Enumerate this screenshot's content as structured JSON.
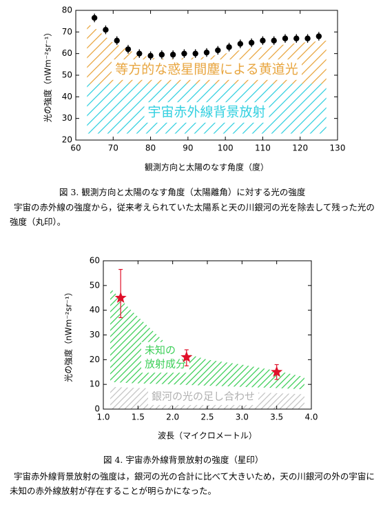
{
  "chart_data": [
    {
      "type": "scatter",
      "marker": "circle",
      "color": "#000000",
      "x_label": "観測方向と太陽のなす角度（度）",
      "y_label": "光の強度（nWm⁻²sr⁻¹）",
      "caption": "図 3.  観測方向と太陽のなす角度（太陽離角）に対する光の強度",
      "description": "宇宙の赤外線の強度から，従来考えられていた太陽系と天の川銀河の光を除去して残った光の強度（丸印）。",
      "x": [
        65,
        68,
        71,
        74,
        77,
        80,
        83,
        86,
        89,
        92,
        95,
        98,
        101,
        104,
        107,
        110,
        113,
        116,
        119,
        122,
        125
      ],
      "values": [
        76.5,
        71,
        66,
        62,
        60,
        59,
        59.5,
        59.5,
        60,
        60,
        60.5,
        61.5,
        63,
        64.5,
        65,
        66,
        66,
        67,
        67,
        67,
        68
      ],
      "errors": [
        2,
        2,
        2,
        2,
        2,
        2,
        2,
        2,
        2,
        2,
        2,
        2,
        2,
        2,
        2,
        2,
        2,
        2,
        2,
        2,
        2
      ],
      "regions": [
        {
          "name": [
            "等方的な惑星間塵による黄道光"
          ],
          "color": "#e8a640",
          "x": [
            63,
            65,
            70,
            75,
            80,
            85,
            90,
            95,
            100,
            105,
            110,
            115,
            120,
            127
          ],
          "upper": [
            74,
            72,
            65,
            61,
            58,
            57.5,
            58,
            58.5,
            60,
            62,
            63,
            64,
            65,
            66
          ],
          "lower": [
            46,
            46,
            46,
            46,
            46,
            46,
            46,
            46,
            46,
            46,
            46,
            46,
            46,
            46
          ]
        },
        {
          "name": [
            "宇宙赤外線背景放射"
          ],
          "color": "#33d0e0",
          "x": [
            63,
            127
          ],
          "upper": [
            46,
            46
          ],
          "lower": [
            23,
            23
          ]
        }
      ],
      "xlim": [
        60,
        130
      ],
      "xticks": [
        60,
        70,
        80,
        90,
        100,
        110,
        120,
        130
      ],
      "ylim": [
        20,
        80
      ],
      "yticks": [
        20,
        30,
        40,
        50,
        60,
        70,
        80
      ]
    },
    {
      "type": "scatter",
      "marker": "star",
      "color": "#e0102a",
      "x_label": "波長（マイクロメートル）",
      "y_label": "光の強度（nWm⁻²sr⁻¹）",
      "caption": "図 4.  宇宙赤外線背景放射の強度（星印）",
      "description": "宇宙赤外線背景放射の強度は，銀河の光の合計に比べて大きいため，天の川銀河の外の宇宙に未知の赤外線放射が存在することが明らかになった。",
      "x": [
        1.25,
        2.2,
        3.5
      ],
      "values": [
        45,
        21,
        15
      ],
      "lower": [
        37,
        17.5,
        12
      ],
      "upper": [
        56.5,
        24,
        18
      ],
      "regions": [
        {
          "name": [
            "未知の",
            "放射成分"
          ],
          "color": "#3ccf58",
          "x": [
            1.1,
            1.4,
            2.0,
            2.5,
            3.0,
            3.5,
            3.9
          ],
          "upper": [
            49,
            40,
            24,
            20,
            18,
            15.5,
            13
          ],
          "lower": [
            11,
            10.5,
            10,
            9.5,
            9,
            8.5,
            8
          ]
        },
        {
          "name": [
            "銀河の光の足し合わせ"
          ],
          "color": "#c4c4c4",
          "x": [
            1.1,
            3.9
          ],
          "upper": [
            9,
            6
          ],
          "lower": [
            0,
            0
          ]
        }
      ],
      "xlim": [
        1.0,
        4.0
      ],
      "xticks": [
        {
          "value": 1.0,
          "label": "1.0"
        },
        {
          "value": 1.5,
          "label": "1.5"
        },
        {
          "value": 2.0,
          "label": "2.0"
        },
        {
          "value": 2.5,
          "label": "2.5"
        },
        {
          "value": 3.0,
          "label": "3.0"
        },
        {
          "value": 3.5,
          "label": "3.5"
        },
        {
          "value": 4.0,
          "label": "4.0"
        }
      ],
      "ylim": [
        0,
        60
      ],
      "yticks": [
        0,
        10,
        20,
        30,
        40,
        50,
        60
      ]
    }
  ]
}
